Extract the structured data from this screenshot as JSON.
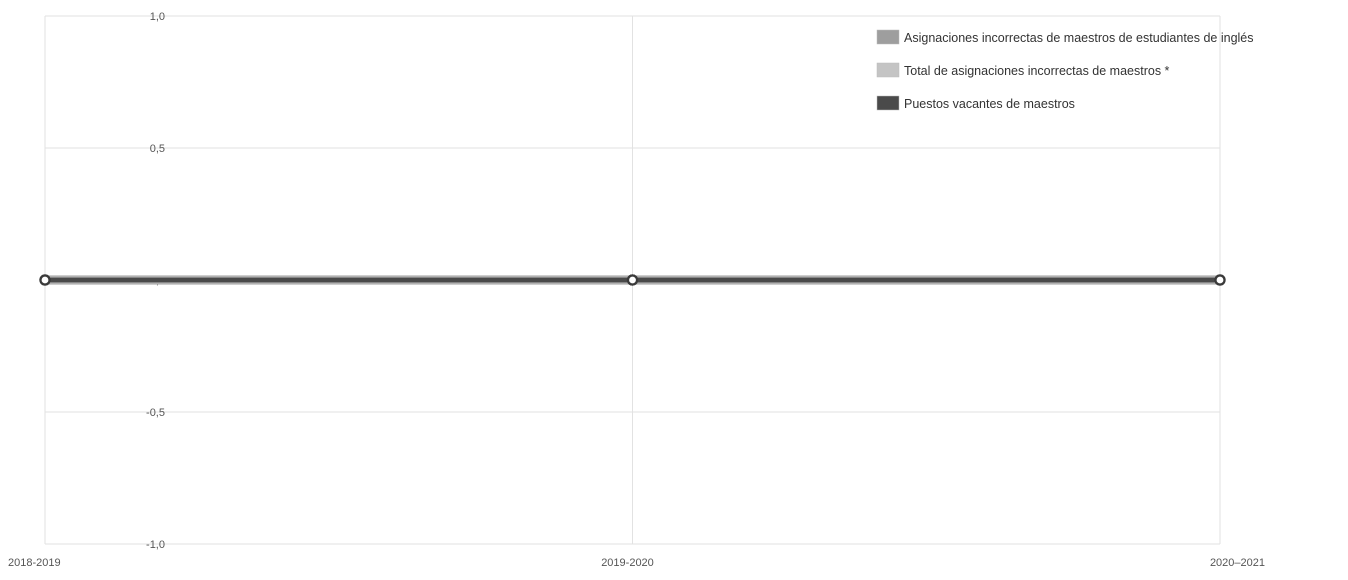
{
  "chart_data": {
    "type": "line",
    "title": "",
    "xlabel": "",
    "ylabel": "",
    "categories": [
      "2018-2019",
      "2019-2020",
      "2020–2021"
    ],
    "ylim": [
      -1.0,
      1.0
    ],
    "yticks": [
      {
        "value": 1.0,
        "label": "1,0"
      },
      {
        "value": 0.5,
        "label": "0,5"
      },
      {
        "value": 0.0,
        "label": "0,0"
      },
      {
        "value": -0.5,
        "label": "-0,5"
      },
      {
        "value": -1.0,
        "label": "-1,0"
      }
    ],
    "grid": true,
    "legend_position": "top-right",
    "series": [
      {
        "name": "Asignaciones incorrectas de maestros de estudiantes de inglés",
        "values": [
          0,
          0,
          0
        ],
        "color": "#9e9e9e"
      },
      {
        "name": "Total de asignaciones incorrectas de maestros *",
        "values": [
          0,
          0,
          0
        ],
        "color": "#c4c4c4"
      },
      {
        "name": "Puestos vacantes de maestros",
        "values": [
          0,
          0,
          0
        ],
        "color": "#4a4a4a"
      }
    ]
  }
}
